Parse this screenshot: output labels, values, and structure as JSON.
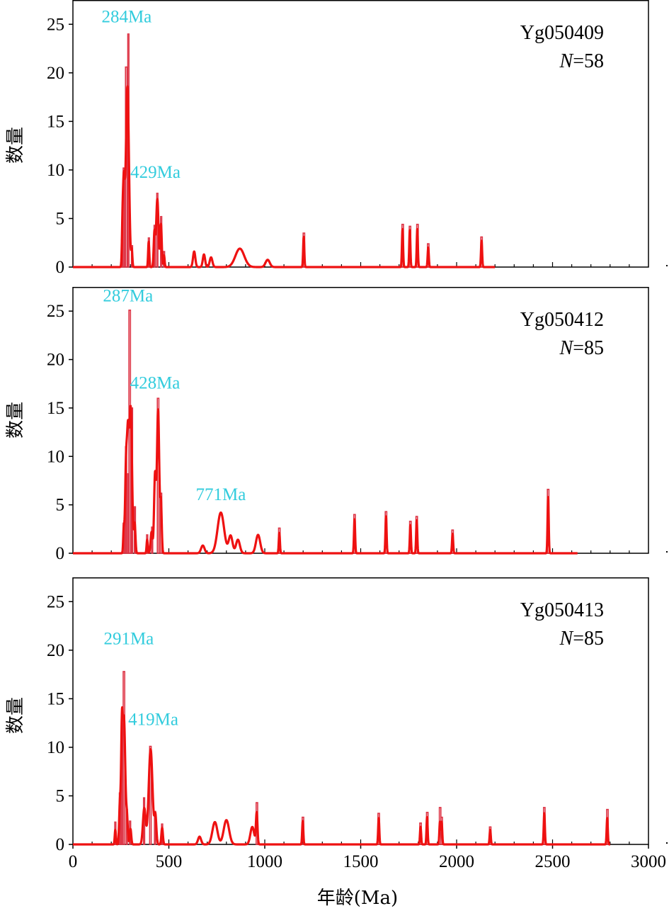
{
  "colors": {
    "curve": "#ee1111",
    "histogram": "#dd3344",
    "peak_label": "#33ccdd",
    "axis": "#000000"
  },
  "ylabel": "数量",
  "xlabel": "年龄(Ma)",
  "n_symbol": "N",
  "chart_data": [
    {
      "type": "line",
      "sample": "Yg050409",
      "n_value": "=58",
      "xlim": [
        0,
        3000
      ],
      "ylim": [
        0,
        27.5
      ],
      "yticks": [
        "0",
        "5",
        "10",
        "15",
        "20",
        "25"
      ],
      "xticks": [],
      "peaks": [
        {
          "label": "284Ma",
          "x": 280,
          "y": 25.2
        },
        {
          "label": "429Ma",
          "x": 430,
          "y": 9.2
        }
      ],
      "histogram": {
        "name": "histogram",
        "bars": [
          {
            "x": 253,
            "w": 6,
            "y": 2.8
          },
          {
            "x": 262,
            "w": 6,
            "y": 10.2
          },
          {
            "x": 274,
            "w": 8,
            "y": 20.6
          },
          {
            "x": 286,
            "w": 6,
            "y": 24.0
          },
          {
            "x": 305,
            "w": 6,
            "y": 2.2
          },
          {
            "x": 393,
            "w": 6,
            "y": 3.0
          },
          {
            "x": 423,
            "w": 6,
            "y": 4.3
          },
          {
            "x": 437,
            "w": 6,
            "y": 7.6
          },
          {
            "x": 457,
            "w": 6,
            "y": 5.2
          },
          {
            "x": 472,
            "w": 6,
            "y": 1.6
          },
          {
            "x": 1200,
            "w": 8,
            "y": 3.5
          },
          {
            "x": 1715,
            "w": 8,
            "y": 4.4
          },
          {
            "x": 1753,
            "w": 8,
            "y": 4.2
          },
          {
            "x": 1792,
            "w": 8,
            "y": 4.4
          },
          {
            "x": 1848,
            "w": 8,
            "y": 2.4
          },
          {
            "x": 2126,
            "w": 8,
            "y": 3.1
          }
        ]
      },
      "curve": {
        "name": "curve",
        "baseline_to": 2200,
        "peaks": [
          {
            "mu": 258,
            "sigma": 3,
            "h": 2.4
          },
          {
            "mu": 265,
            "sigma": 5,
            "h": 8.5
          },
          {
            "mu": 284,
            "sigma": 8,
            "h": 18.6
          },
          {
            "mu": 307,
            "sigma": 3,
            "h": 1.6
          },
          {
            "mu": 395,
            "sigma": 3,
            "h": 2.6
          },
          {
            "mu": 425,
            "sigma": 4,
            "h": 3.5
          },
          {
            "mu": 440,
            "sigma": 6,
            "h": 7.0
          },
          {
            "mu": 459,
            "sigma": 4,
            "h": 4.4
          },
          {
            "mu": 475,
            "sigma": 3,
            "h": 1.2
          },
          {
            "mu": 632,
            "sigma": 6,
            "h": 1.6
          },
          {
            "mu": 683,
            "sigma": 6,
            "h": 1.3
          },
          {
            "mu": 720,
            "sigma": 7,
            "h": 1.0
          },
          {
            "mu": 870,
            "sigma": 23,
            "h": 1.9
          },
          {
            "mu": 1015,
            "sigma": 11,
            "h": 0.75
          },
          {
            "mu": 1203,
            "sigma": 3,
            "h": 3.1
          },
          {
            "mu": 1718,
            "sigma": 3,
            "h": 3.9
          },
          {
            "mu": 1756,
            "sigma": 3,
            "h": 3.8
          },
          {
            "mu": 1795,
            "sigma": 3,
            "h": 3.9
          },
          {
            "mu": 1852,
            "sigma": 3,
            "h": 2.0
          },
          {
            "mu": 2130,
            "sigma": 3,
            "h": 2.7
          }
        ]
      }
    },
    {
      "type": "line",
      "sample": "Yg050412",
      "n_value": "=85",
      "xlim": [
        0,
        3000
      ],
      "ylim": [
        0,
        27.5
      ],
      "yticks": [
        "0",
        "5",
        "10",
        "15",
        "20",
        "25"
      ],
      "xticks": [],
      "peaks": [
        {
          "label": "287Ma",
          "x": 287,
          "y": 26.0
        },
        {
          "label": "428Ma",
          "x": 428,
          "y": 17.0
        },
        {
          "label": "771Ma",
          "x": 771,
          "y": 5.5
        }
      ],
      "histogram": {
        "name": "histogram",
        "bars": [
          {
            "x": 262,
            "w": 6,
            "y": 3.1
          },
          {
            "x": 274,
            "w": 6,
            "y": 11.0
          },
          {
            "x": 282,
            "w": 6,
            "y": 8.2
          },
          {
            "x": 292,
            "w": 8,
            "y": 25.1
          },
          {
            "x": 305,
            "w": 6,
            "y": 15.0
          },
          {
            "x": 320,
            "w": 6,
            "y": 4.8
          },
          {
            "x": 384,
            "w": 6,
            "y": 1.9
          },
          {
            "x": 410,
            "w": 6,
            "y": 2.7
          },
          {
            "x": 440,
            "w": 8,
            "y": 16.0
          },
          {
            "x": 455,
            "w": 8,
            "y": 6.2
          },
          {
            "x": 1072,
            "w": 8,
            "y": 2.6
          },
          {
            "x": 1464,
            "w": 8,
            "y": 4.0
          },
          {
            "x": 1628,
            "w": 8,
            "y": 4.3
          },
          {
            "x": 1755,
            "w": 8,
            "y": 3.3
          },
          {
            "x": 1788,
            "w": 8,
            "y": 3.8
          },
          {
            "x": 1975,
            "w": 8,
            "y": 2.4
          },
          {
            "x": 2473,
            "w": 8,
            "y": 6.6
          }
        ]
      },
      "curve": {
        "name": "curve",
        "baseline_to": 2630,
        "peaks": [
          {
            "mu": 265,
            "sigma": 3,
            "h": 2.4
          },
          {
            "mu": 277,
            "sigma": 5,
            "h": 9.0
          },
          {
            "mu": 287,
            "sigma": 5,
            "h": 10.5
          },
          {
            "mu": 301,
            "sigma": 7,
            "h": 15.0
          },
          {
            "mu": 322,
            "sigma": 4,
            "h": 3.0
          },
          {
            "mu": 387,
            "sigma": 3,
            "h": 1.4
          },
          {
            "mu": 410,
            "sigma": 5,
            "h": 2.2
          },
          {
            "mu": 428,
            "sigma": 5,
            "h": 8.0
          },
          {
            "mu": 444,
            "sigma": 6,
            "h": 14.8
          },
          {
            "mu": 459,
            "sigma": 4,
            "h": 5.0
          },
          {
            "mu": 677,
            "sigma": 9,
            "h": 0.8
          },
          {
            "mu": 771,
            "sigma": 17,
            "h": 4.2
          },
          {
            "mu": 822,
            "sigma": 10,
            "h": 1.8
          },
          {
            "mu": 860,
            "sigma": 10,
            "h": 1.4
          },
          {
            "mu": 965,
            "sigma": 11,
            "h": 1.9
          },
          {
            "mu": 1076,
            "sigma": 3,
            "h": 2.1
          },
          {
            "mu": 1468,
            "sigma": 3,
            "h": 3.5
          },
          {
            "mu": 1632,
            "sigma": 3,
            "h": 3.8
          },
          {
            "mu": 1759,
            "sigma": 3,
            "h": 2.9
          },
          {
            "mu": 1792,
            "sigma": 3,
            "h": 3.4
          },
          {
            "mu": 1979,
            "sigma": 3,
            "h": 2.0
          },
          {
            "mu": 2477,
            "sigma": 3,
            "h": 5.8
          }
        ]
      }
    },
    {
      "type": "line",
      "sample": "Yg050413",
      "n_value": "=85",
      "xlim": [
        0,
        3000
      ],
      "ylim": [
        0,
        27.5
      ],
      "yticks": [
        "0",
        "5",
        "10",
        "15",
        "20",
        "25"
      ],
      "xticks": [
        "0",
        "500",
        "1000",
        "1500",
        "2000",
        "2500",
        "3000"
      ],
      "peaks": [
        {
          "label": "291Ma",
          "x": 291,
          "y": 20.6
        },
        {
          "label": "419Ma",
          "x": 419,
          "y": 12.3
        }
      ],
      "histogram": {
        "name": "histogram",
        "bars": [
          {
            "x": 218,
            "w": 6,
            "y": 2.3
          },
          {
            "x": 242,
            "w": 6,
            "y": 5.3
          },
          {
            "x": 252,
            "w": 6,
            "y": 12.4
          },
          {
            "x": 262,
            "w": 8,
            "y": 17.8
          },
          {
            "x": 278,
            "w": 6,
            "y": 3.6
          },
          {
            "x": 295,
            "w": 6,
            "y": 2.4
          },
          {
            "x": 368,
            "w": 6,
            "y": 4.8
          },
          {
            "x": 400,
            "w": 8,
            "y": 10.1
          },
          {
            "x": 425,
            "w": 6,
            "y": 3.4
          },
          {
            "x": 462,
            "w": 6,
            "y": 2.1
          },
          {
            "x": 955,
            "w": 8,
            "y": 4.3
          },
          {
            "x": 1195,
            "w": 8,
            "y": 2.8
          },
          {
            "x": 1590,
            "w": 8,
            "y": 3.2
          },
          {
            "x": 1808,
            "w": 8,
            "y": 2.2
          },
          {
            "x": 1843,
            "w": 8,
            "y": 3.3
          },
          {
            "x": 1910,
            "w": 8,
            "y": 3.8
          },
          {
            "x": 1918,
            "w": 8,
            "y": 2.8
          },
          {
            "x": 2171,
            "w": 8,
            "y": 1.8
          },
          {
            "x": 2453,
            "w": 8,
            "y": 3.8
          },
          {
            "x": 2782,
            "w": 8,
            "y": 3.6
          }
        ]
      },
      "curve": {
        "name": "curve",
        "baseline_to": 2800,
        "peaks": [
          {
            "mu": 221,
            "sigma": 3,
            "h": 1.5
          },
          {
            "mu": 245,
            "sigma": 4,
            "h": 4.2
          },
          {
            "mu": 255,
            "sigma": 4,
            "h": 9.5
          },
          {
            "mu": 266,
            "sigma": 7,
            "h": 13.0
          },
          {
            "mu": 282,
            "sigma": 4,
            "h": 2.4
          },
          {
            "mu": 300,
            "sigma": 4,
            "h": 1.6
          },
          {
            "mu": 372,
            "sigma": 7,
            "h": 3.7
          },
          {
            "mu": 405,
            "sigma": 10,
            "h": 9.8
          },
          {
            "mu": 430,
            "sigma": 5,
            "h": 2.8
          },
          {
            "mu": 465,
            "sigma": 4,
            "h": 1.7
          },
          {
            "mu": 660,
            "sigma": 8,
            "h": 0.8
          },
          {
            "mu": 740,
            "sigma": 13,
            "h": 2.3
          },
          {
            "mu": 800,
            "sigma": 14,
            "h": 2.5
          },
          {
            "mu": 935,
            "sigma": 10,
            "h": 1.8
          },
          {
            "mu": 958,
            "sigma": 4,
            "h": 3.2
          },
          {
            "mu": 1198,
            "sigma": 3,
            "h": 2.4
          },
          {
            "mu": 1594,
            "sigma": 3,
            "h": 2.7
          },
          {
            "mu": 1812,
            "sigma": 3,
            "h": 1.8
          },
          {
            "mu": 1846,
            "sigma": 3,
            "h": 2.8
          },
          {
            "mu": 1913,
            "sigma": 3,
            "h": 2.3
          },
          {
            "mu": 1922,
            "sigma": 3,
            "h": 2.3
          },
          {
            "mu": 2175,
            "sigma": 3,
            "h": 1.5
          },
          {
            "mu": 2457,
            "sigma": 3,
            "h": 3.2
          },
          {
            "mu": 2785,
            "sigma": 3,
            "h": 2.7
          }
        ]
      }
    }
  ]
}
